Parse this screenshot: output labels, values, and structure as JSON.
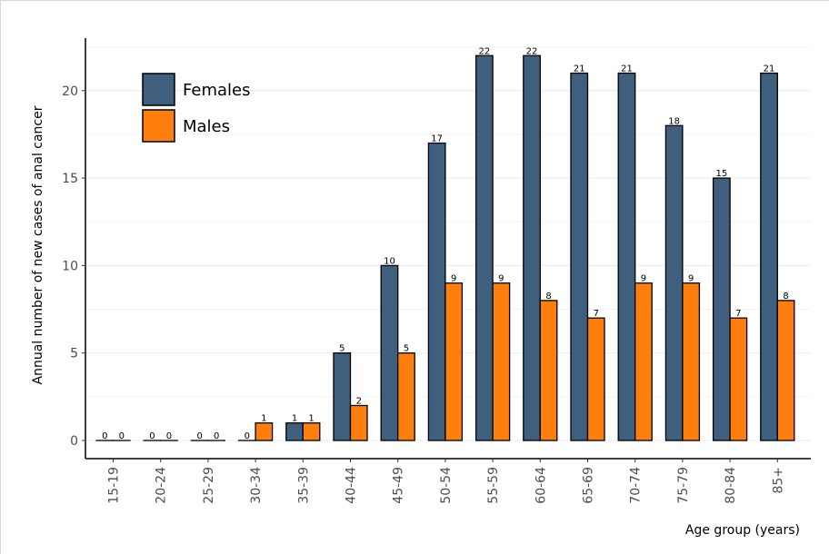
{
  "chart_data": {
    "type": "bar",
    "xlabel": "Age group (years)",
    "ylabel": "Annual number of new cases of anal cancer",
    "ylim": [
      0,
      23
    ],
    "yticks": [
      0,
      5,
      10,
      15,
      20
    ],
    "grid": "horizontal",
    "legend": "top-left",
    "categories": [
      "15-19",
      "20-24",
      "25-29",
      "30-34",
      "35-39",
      "40-44",
      "45-49",
      "50-54",
      "55-59",
      "60-64",
      "65-69",
      "70-74",
      "75-79",
      "80-84",
      "85+"
    ],
    "series": [
      {
        "name": "Females",
        "color": "#3e5f7d",
        "values": [
          0,
          0,
          0,
          0,
          1,
          5,
          10,
          17,
          22,
          22,
          21,
          21,
          18,
          15,
          21
        ]
      },
      {
        "name": "Males",
        "color": "#ff7f0e",
        "values": [
          0,
          0,
          0,
          1,
          1,
          2,
          5,
          9,
          9,
          8,
          7,
          9,
          9,
          7,
          8
        ]
      }
    ]
  }
}
